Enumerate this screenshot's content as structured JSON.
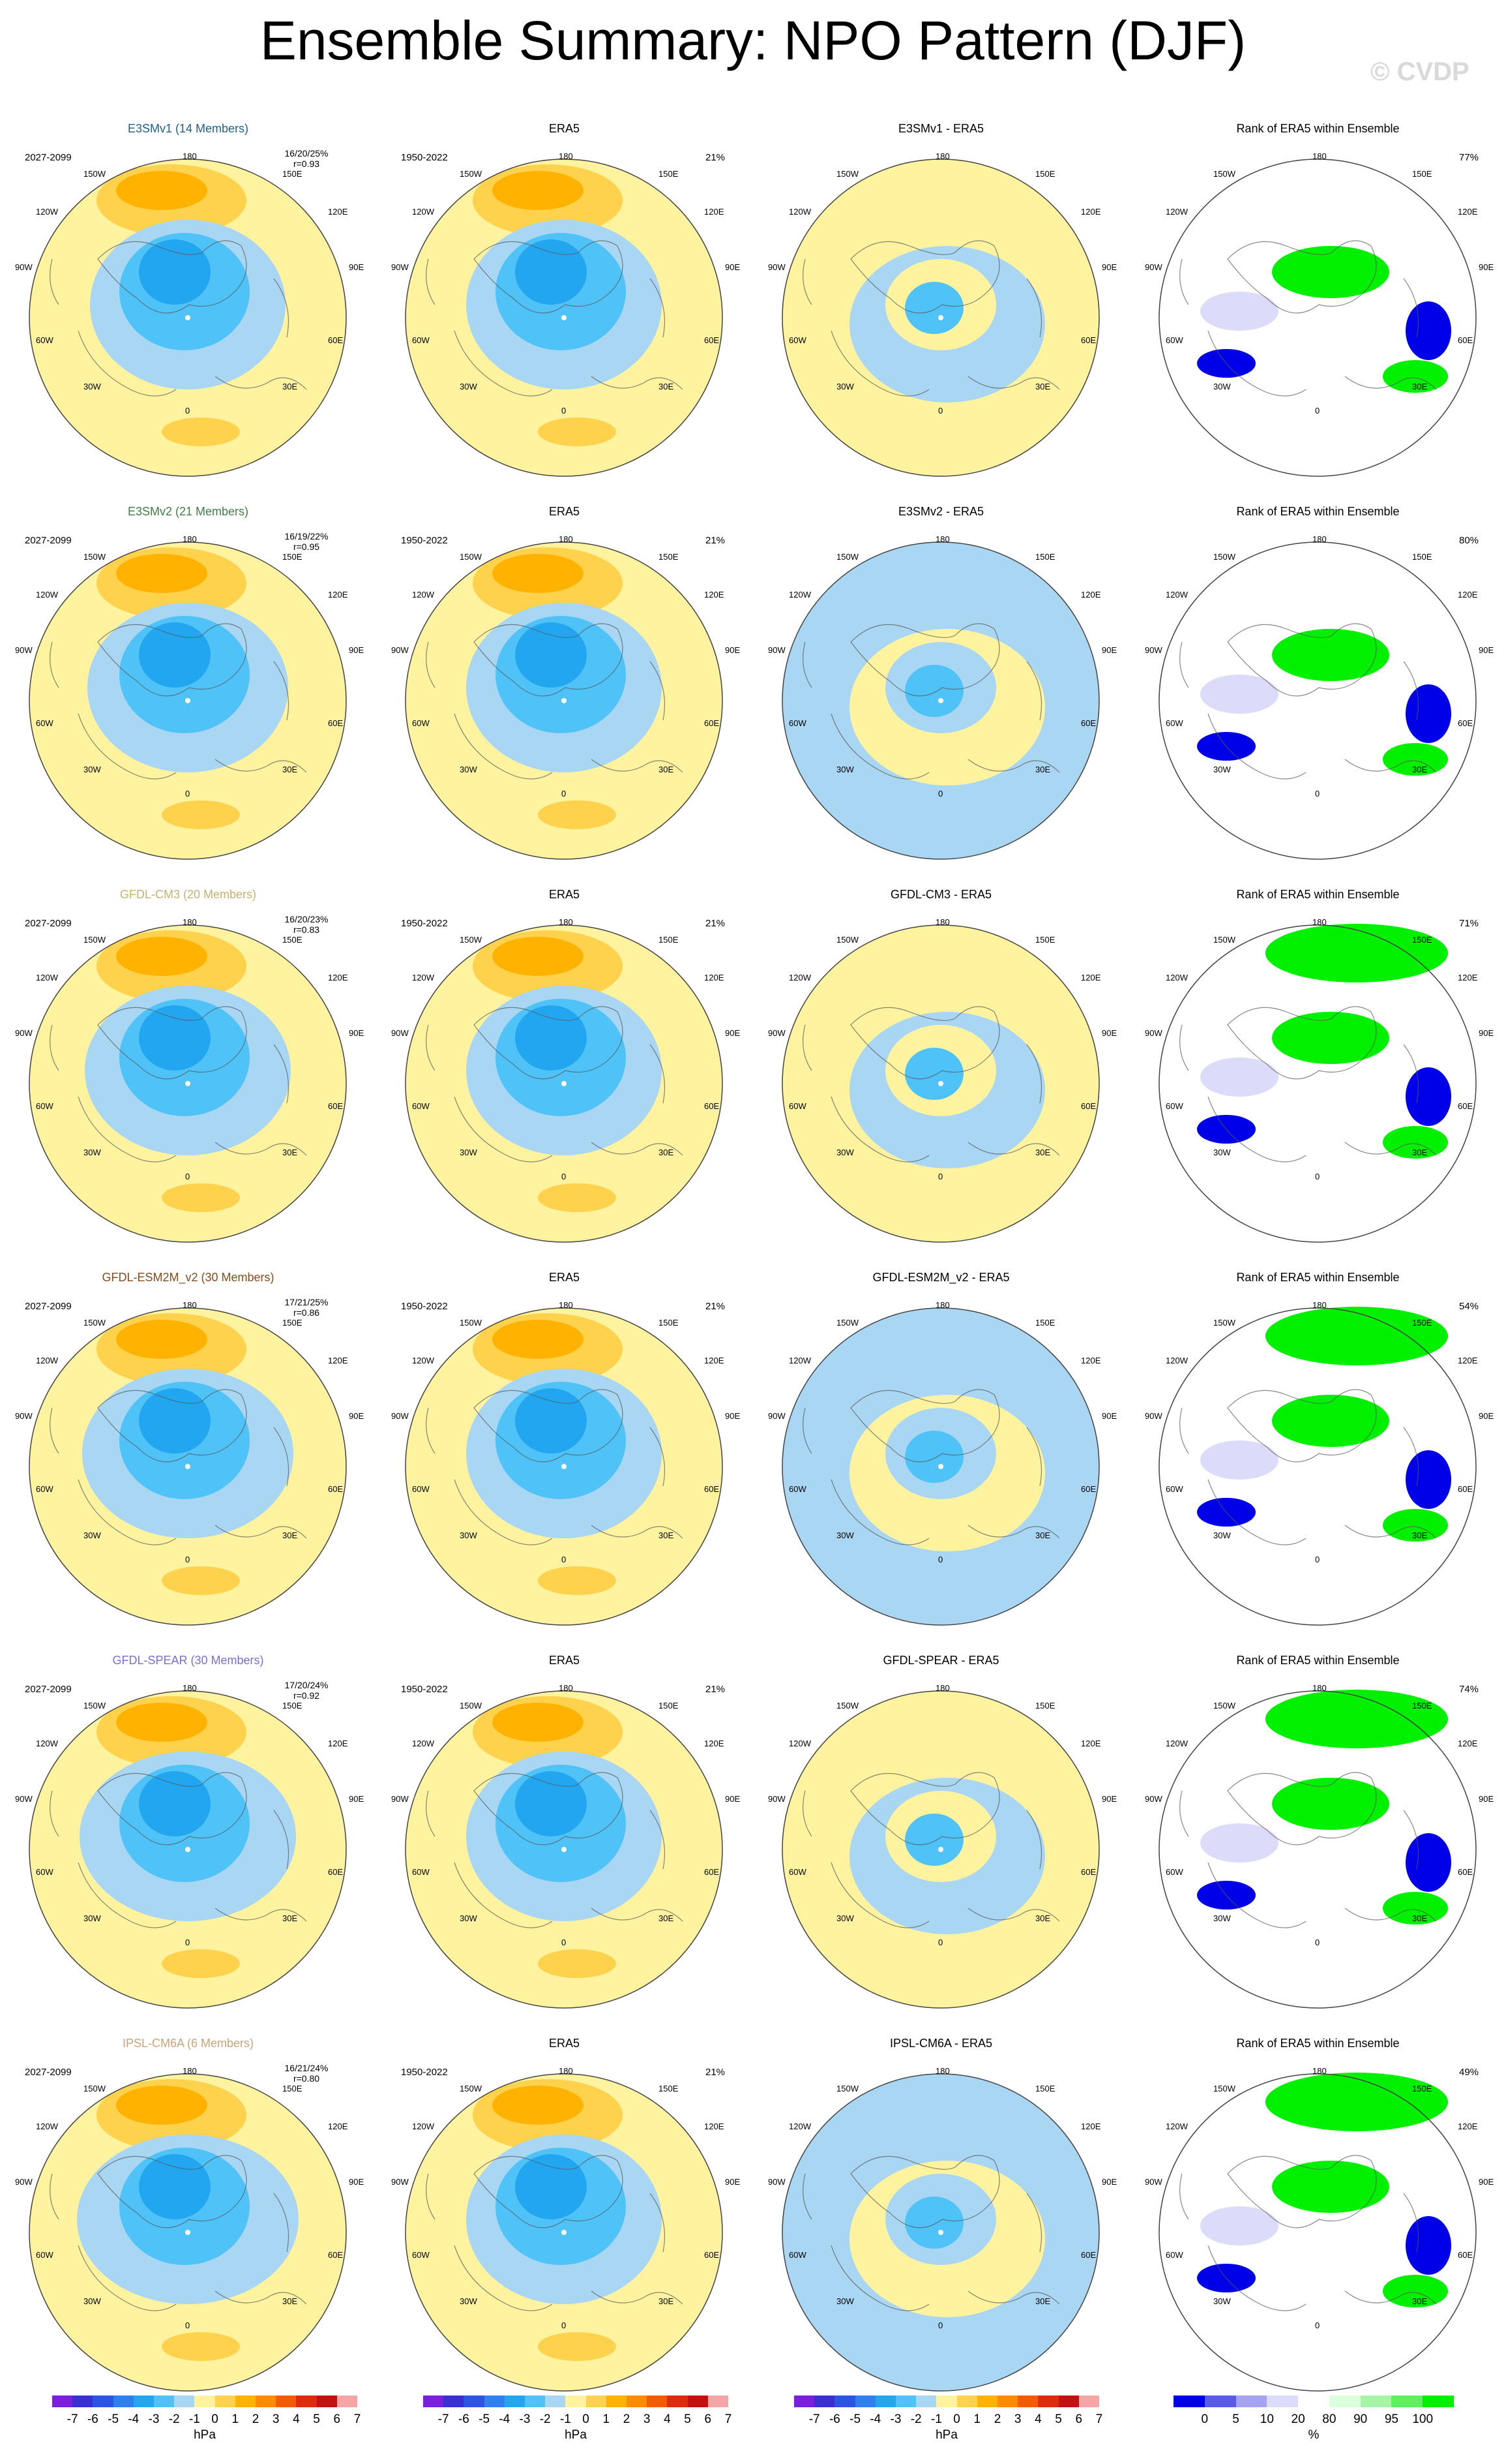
{
  "header": {
    "title": "Ensemble Summary: NPO Pattern (DJF)",
    "watermark": "© CVDP"
  },
  "common": {
    "model_period": "2027-2099",
    "obs_period": "1950-2022",
    "obs_pct": "21%",
    "obs_title": "ERA5",
    "rank_title": "Rank of ERA5 within Ensemble",
    "lon_labels": [
      "180",
      "150E",
      "120E",
      "90E",
      "60E",
      "30E",
      "0",
      "30W",
      "60W",
      "90W",
      "120W",
      "150W"
    ]
  },
  "rows": [
    {
      "model_title": "E3SMv1 (14 Members)",
      "model_color": "#1f5f8b",
      "stat1": "16/20/25%",
      "stat2": "r=0.93",
      "diff_title": "E3SMv1 - ERA5",
      "rank_pct": "77%"
    },
    {
      "model_title": "E3SMv2 (21 Members)",
      "model_color": "#3d7f45",
      "stat1": "16/19/22%",
      "stat2": "r=0.95",
      "diff_title": "E3SMv2 - ERA5",
      "rank_pct": "80%"
    },
    {
      "model_title": "GFDL-CM3 (20 Members)",
      "model_color": "#c8b070",
      "stat1": "16/20/23%",
      "stat2": "r=0.83",
      "diff_title": "GFDL-CM3 - ERA5",
      "rank_pct": "71%"
    },
    {
      "model_title": "GFDL-ESM2M_v2 (30 Members)",
      "model_color": "#8a4b1c",
      "stat1": "17/21/25%",
      "stat2": "r=0.86",
      "diff_title": "GFDL-ESM2M_v2 - ERA5",
      "rank_pct": "54%"
    },
    {
      "model_title": "GFDL-SPEAR (30 Members)",
      "model_color": "#7a6fcf",
      "stat1": "17/20/24%",
      "stat2": "r=0.92",
      "diff_title": "GFDL-SPEAR - ERA5",
      "rank_pct": "74%"
    },
    {
      "model_title": "IPSL-CM6A (6 Members)",
      "model_color": "#c9a37a",
      "stat1": "16/21/24%",
      "stat2": "r=0.80",
      "diff_title": "IPSL-CM6A - ERA5",
      "rank_pct": "49%"
    }
  ],
  "colorbar_hpa": {
    "labels": [
      "-7",
      "-6",
      "-5",
      "-4",
      "-3",
      "-2",
      "-1",
      "0",
      "1",
      "2",
      "3",
      "4",
      "5",
      "6",
      "7"
    ],
    "units": "hPa",
    "colors": [
      "#7a1fe0",
      "#3a2fd6",
      "#2d52e6",
      "#2f7ff0",
      "#22a6f0",
      "#4fc3f7",
      "#a9d6f2",
      "#fff3a0",
      "#ffd24d",
      "#ffb300",
      "#ff8c00",
      "#f55a00",
      "#e02a10",
      "#c41010",
      "#f4a6a6"
    ]
  },
  "colorbar_rank": {
    "labels": [
      "0",
      "5",
      "10",
      "20",
      "80",
      "90",
      "95",
      "100"
    ],
    "units": "%",
    "colors": [
      "#0000e8",
      "#5a5ae8",
      "#a3a3f0",
      "#dcdcfa",
      "#ffffff",
      "#dcffdc",
      "#a6f5a6",
      "#5ff05f",
      "#00f000"
    ]
  }
}
